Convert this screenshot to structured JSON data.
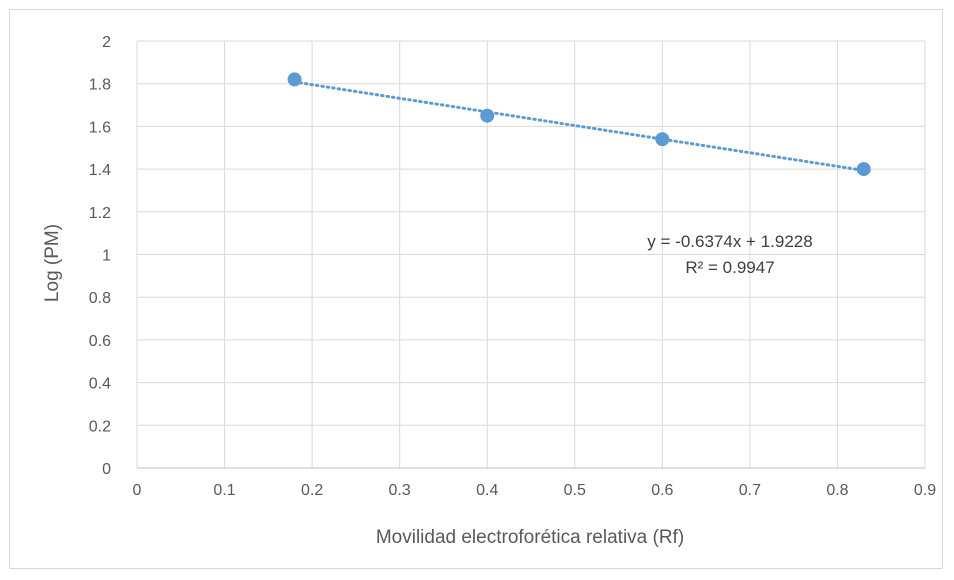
{
  "chart_data": {
    "type": "scatter",
    "title": "",
    "xlabel": "Movilidad electroforética relativa (Rf)",
    "ylabel": "Log (PM)",
    "xlim": [
      0,
      0.9
    ],
    "ylim": [
      0,
      2
    ],
    "x_ticks": [
      "0",
      "0.1",
      "0.2",
      "0.3",
      "0.4",
      "0.5",
      "0.6",
      "0.7",
      "0.8",
      "0.9"
    ],
    "y_ticks": [
      "0",
      "0.2",
      "0.4",
      "0.6",
      "0.8",
      "1",
      "1.2",
      "1.4",
      "1.6",
      "1.8",
      "2"
    ],
    "grid": true,
    "legend": "none",
    "series": [
      {
        "x": [
          0.18,
          0.4,
          0.6,
          0.83
        ],
        "y": [
          1.82,
          1.65,
          1.54,
          1.4
        ],
        "color": "#5b9bd5",
        "marker": "circle"
      }
    ],
    "trendline": {
      "type": "linear",
      "slope": -0.6374,
      "intercept": 1.9228,
      "color": "#5b9bd5",
      "style": "dotted",
      "equation_label": "y = -0.6374x + 1.9228",
      "r2_label": "R² = 0.9947"
    }
  }
}
